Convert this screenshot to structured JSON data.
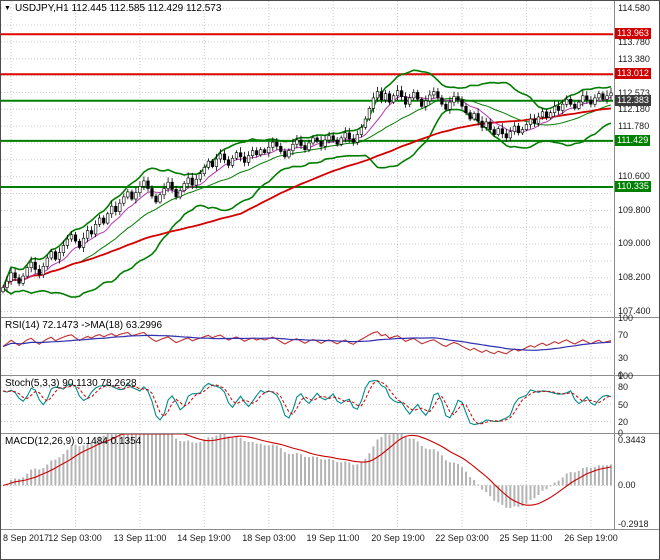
{
  "header": {
    "dropdown_icon": "▼",
    "symbol_title": "USDJPY,H1 112.445 112.585 112.429 112.573"
  },
  "chart_data": {
    "type": "candlestick",
    "symbol": "USDJPY",
    "timeframe": "H1",
    "quote": {
      "open": "112.445",
      "high": "112.585",
      "low": "112.429",
      "close": "112.573"
    },
    "price_top": 114.75,
    "price_bottom": 107.25,
    "grid": {
      "start": 114.58,
      "step": 0.4,
      "count": 19
    },
    "axis_labels": [
      "114.580",
      "113.780",
      "113.380",
      "112.573",
      "112.180",
      "111.780",
      "110.600",
      "109.800",
      "109.000",
      "108.200",
      "107.400"
    ],
    "badges": [
      {
        "value": "113.963",
        "price": 113.963,
        "color": "#d00000"
      },
      {
        "value": "113.012",
        "price": 113.012,
        "color": "#d00000"
      },
      {
        "value": "112.383",
        "price": 112.383,
        "color": "#3a3a3a"
      },
      {
        "value": "111.429",
        "price": 111.429,
        "color": "#008000"
      },
      {
        "value": "110.335",
        "price": 110.335,
        "color": "#008000"
      }
    ],
    "levels": [
      {
        "price": 113.963,
        "color": "#e00000",
        "width": 2
      },
      {
        "price": 113.012,
        "color": "#e00000",
        "width": 2
      },
      {
        "price": 112.383,
        "color": "#008000",
        "width": 2
      },
      {
        "price": 111.429,
        "color": "#008000",
        "width": 2
      },
      {
        "price": 110.335,
        "color": "#008000",
        "width": 2
      }
    ],
    "x_labels": [
      "8 Sep 2017",
      "12 Sep 03:00",
      "13 Sep 11:00",
      "14 Sep 19:00",
      "18 Sep 03:00",
      "19 Sep 11:00",
      "20 Sep 19:00",
      "22 Sep 03:00",
      "25 Sep 11:00",
      "26 Sep 19:00"
    ],
    "x_tick_indices": [
      2,
      18,
      34,
      50,
      66,
      82,
      98,
      114,
      130,
      146
    ],
    "first_open": 107.85,
    "closes": [
      107.95,
      108.1,
      108.3,
      108.18,
      108.05,
      108.22,
      108.42,
      108.55,
      108.38,
      108.25,
      108.45,
      108.65,
      108.8,
      108.62,
      108.78,
      108.95,
      109.1,
      109.2,
      109.05,
      108.9,
      109.12,
      109.3,
      109.22,
      109.45,
      109.6,
      109.48,
      109.7,
      109.88,
      109.75,
      109.95,
      110.1,
      110.22,
      110.05,
      110.2,
      110.35,
      110.48,
      110.3,
      110.12,
      109.98,
      110.15,
      110.3,
      110.45,
      110.28,
      110.1,
      110.25,
      110.42,
      110.55,
      110.38,
      110.52,
      110.65,
      110.8,
      110.95,
      110.82,
      111.0,
      111.12,
      110.98,
      110.85,
      111.02,
      111.15,
      111.05,
      110.92,
      111.08,
      111.2,
      111.1,
      111.22,
      111.15,
      111.28,
      111.4,
      111.3,
      111.18,
      111.05,
      111.2,
      111.35,
      111.45,
      111.32,
      111.22,
      111.38,
      111.5,
      111.42,
      111.3,
      111.45,
      111.55,
      111.45,
      111.35,
      111.5,
      111.62,
      111.48,
      111.4,
      111.58,
      111.75,
      111.95,
      112.2,
      112.45,
      112.6,
      112.4,
      112.55,
      112.35,
      112.5,
      112.62,
      112.48,
      112.3,
      112.45,
      112.58,
      112.42,
      112.25,
      112.38,
      112.52,
      112.6,
      112.45,
      112.3,
      112.18,
      112.35,
      112.48,
      112.4,
      112.25,
      112.1,
      111.95,
      112.08,
      111.9,
      111.75,
      111.88,
      111.7,
      111.58,
      111.72,
      111.6,
      111.5,
      111.65,
      111.78,
      111.62,
      111.7,
      111.82,
      111.95,
      111.85,
      112.0,
      112.12,
      111.98,
      112.1,
      112.25,
      112.15,
      112.3,
      112.42,
      112.3,
      112.2,
      112.35,
      112.5,
      112.4,
      112.3,
      112.45,
      112.55,
      112.42,
      112.5,
      112.57
    ],
    "candle_colors": {
      "bull": "#ffffff",
      "bear": "#000000",
      "outline": "#000000"
    },
    "overlays": {
      "bollinger": {
        "period": 20,
        "deviation": 2.2,
        "color": "#007d00"
      },
      "ma_slow": {
        "period": 60,
        "color": "#d40000"
      },
      "ma_fast": {
        "period": 8,
        "color": "#b03ab0"
      }
    },
    "rsi": {
      "title": "RSI(14) 72.1473 ->MA(18) 63.2996",
      "period": 14,
      "ma_period": 18,
      "line_color": "#c03030",
      "ma_color": "#3030b0",
      "scale": [
        {
          "v": 100,
          "label": "100"
        },
        {
          "v": 70,
          "label": "70"
        },
        {
          "v": 30,
          "label": "30"
        },
        {
          "v": 0,
          "label": "0"
        }
      ]
    },
    "stoch": {
      "title": "Stoch(5,3,3) 90.1130 78.2628",
      "k": 5,
      "slowing": 3,
      "d": 3,
      "k_color": "#008b8b",
      "d_color": "#cc0000",
      "scale": [
        {
          "v": 100,
          "label": "100"
        },
        {
          "v": 80,
          "label": "80"
        },
        {
          "v": 50,
          "label": "50"
        },
        {
          "v": 20,
          "label": "20"
        },
        {
          "v": 0,
          "label": "0"
        }
      ]
    },
    "macd": {
      "title": "MACD(12,26,9) 0.1484 0.1354",
      "fast": 12,
      "slow": 26,
      "signal": 9,
      "range": [
        -0.2918,
        0.3443
      ],
      "hist_color": "#b4b4b4",
      "signal_color": "#cc0000",
      "scale": [
        {
          "v": 0.3443,
          "label": "0.3443"
        },
        {
          "v": 0,
          "label": "0.00"
        },
        {
          "v": -0.2918,
          "label": "-0.2918"
        }
      ]
    }
  }
}
